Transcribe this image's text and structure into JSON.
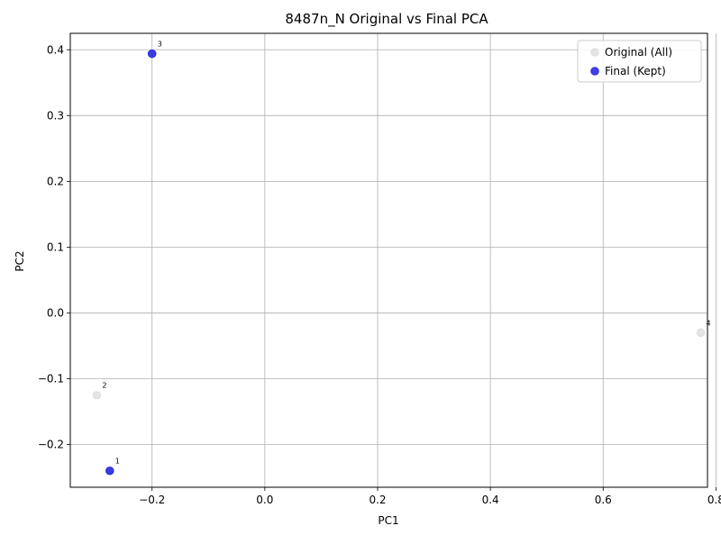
{
  "chart_data": {
    "type": "scatter",
    "title": "8487n_N Original vs Final PCA",
    "xlabel": "PC1",
    "ylabel": "PC2",
    "xlim": [
      -0.345,
      0.785
    ],
    "ylim": [
      -0.265,
      0.425
    ],
    "x_ticks": [
      -0.2,
      0.0,
      0.2,
      0.4,
      0.6,
      0.8
    ],
    "x_tick_labels": [
      "−0.2",
      "0.0",
      "0.2",
      "0.4",
      "0.6",
      "0.8"
    ],
    "y_ticks": [
      -0.2,
      -0.1,
      0.0,
      0.1,
      0.2,
      0.3,
      0.4
    ],
    "y_tick_labels": [
      "−0.2",
      "−0.1",
      "0.0",
      "0.1",
      "0.2",
      "0.3",
      "0.4"
    ],
    "grid": true,
    "legend_position": "top-right",
    "series": [
      {
        "name": "Original (All)",
        "color": "#d9d9d9",
        "points": [
          {
            "label": "1",
            "x": -0.275,
            "y": -0.24
          },
          {
            "label": "2",
            "x": -0.298,
            "y": -0.125
          },
          {
            "label": "3",
            "x": -0.2,
            "y": 0.394
          },
          {
            "label": "4",
            "x": 0.773,
            "y": -0.03
          }
        ]
      },
      {
        "name": "Final (Kept)",
        "color": "#1f1fe0",
        "points": [
          {
            "label": "1",
            "x": -0.275,
            "y": -0.24
          },
          {
            "label": "3",
            "x": -0.2,
            "y": 0.394
          }
        ]
      }
    ],
    "point_labels": [
      {
        "text": "1",
        "x": -0.275,
        "y": -0.24
      },
      {
        "text": "2",
        "x": -0.298,
        "y": -0.125
      },
      {
        "text": "3",
        "x": -0.2,
        "y": 0.394
      },
      {
        "text": "4",
        "x": 0.773,
        "y": -0.03
      }
    ]
  }
}
